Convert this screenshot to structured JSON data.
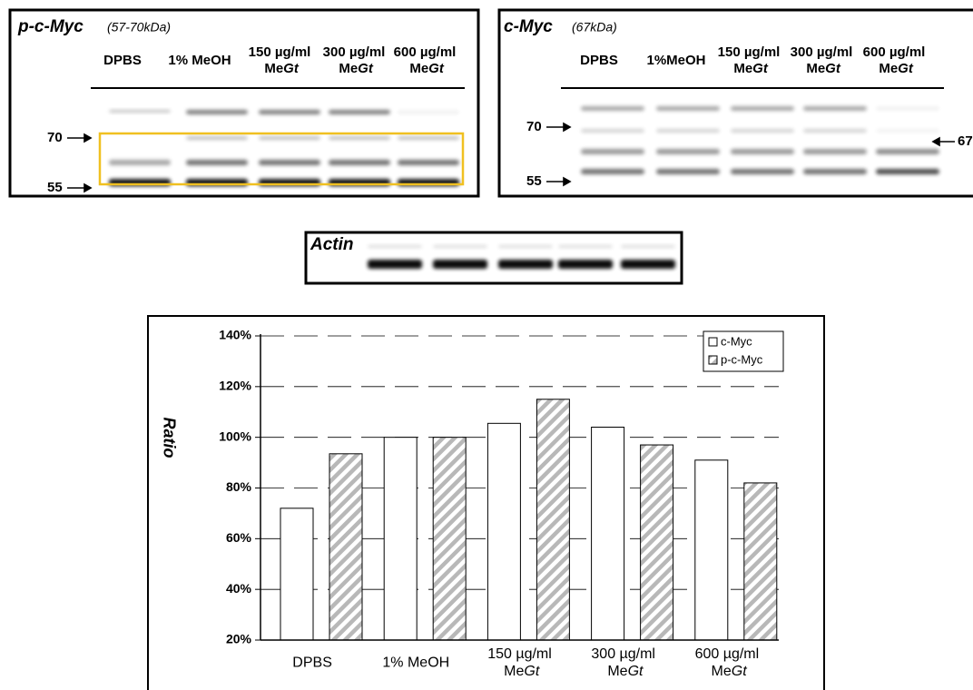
{
  "blots": {
    "left": {
      "title": "p-c-Myc",
      "subtitle": "(57-70kDa)",
      "lanes": [
        "DPBS",
        "1% MeOH",
        "150 µg/ml MeGt",
        "300 µg/ml MeGt",
        "600 µg/ml MeGt"
      ],
      "markers": [
        "70",
        "55"
      ]
    },
    "right": {
      "title": "c-Myc",
      "subtitle": "(67kDa)",
      "lanes": [
        "DPBS",
        "1%MeOH",
        "150 µg/ml MeGt",
        "300 µg/ml MeGt",
        "600 µg/ml MeGt"
      ],
      "markers": [
        "70",
        "55"
      ],
      "side_marker": "67"
    },
    "actin": {
      "title": "Actin"
    }
  },
  "chart_data": {
    "type": "bar",
    "ylabel": "Ratio",
    "categories": [
      "DPBS",
      "1% MeOH",
      "150 µg/ml MeGt",
      "300 µg/ml MeGt",
      "600 µg/ml MeGt"
    ],
    "series": [
      {
        "name": "c-Myc",
        "color": "#ffffff",
        "values": [
          72,
          100,
          105.5,
          104,
          91
        ]
      },
      {
        "name": "p-c-Myc",
        "color": "#b8b8b8",
        "hatch": true,
        "values": [
          93.5,
          100,
          115,
          97,
          82
        ]
      }
    ],
    "ylim": [
      20,
      140
    ],
    "yticks": [
      {
        "value": 20,
        "label": "20%"
      },
      {
        "value": 40,
        "label": "40%"
      },
      {
        "value": 60,
        "label": "60%"
      },
      {
        "value": 80,
        "label": "80%"
      },
      {
        "value": 100,
        "label": "100%"
      },
      {
        "value": 120,
        "label": "120%"
      },
      {
        "value": 140,
        "label": "140%"
      }
    ],
    "grid": true,
    "legend": "top-right"
  }
}
